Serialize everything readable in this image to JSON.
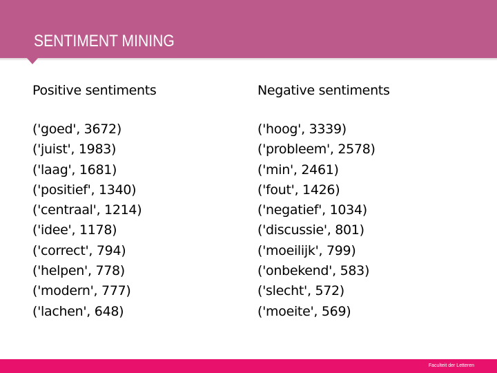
{
  "slide": {
    "title": "SENTIMENT MINING",
    "footer": "Faculteit der Letteren"
  },
  "positive": {
    "heading": "Positive sentiments",
    "items": [
      "('goed', 3672)",
      "('juist', 1983)",
      "('laag', 1681)",
      "('positief', 1340)",
      "('centraal', 1214)",
      "('idee', 1178)",
      "('correct', 794)",
      "('helpen', 778)",
      "('modern', 777)",
      "('lachen', 648)"
    ]
  },
  "negative": {
    "heading": "Negative sentiments",
    "items": [
      "('hoog', 3339)",
      "('probleem', 2578)",
      "('min', 2461)",
      "('fout', 1426)",
      "('negatief', 1034)",
      "('discussie', 801)",
      "('moeilijk', 799)",
      "('onbekend', 583)",
      "('slecht', 572)",
      "('moeite', 569)"
    ]
  }
}
